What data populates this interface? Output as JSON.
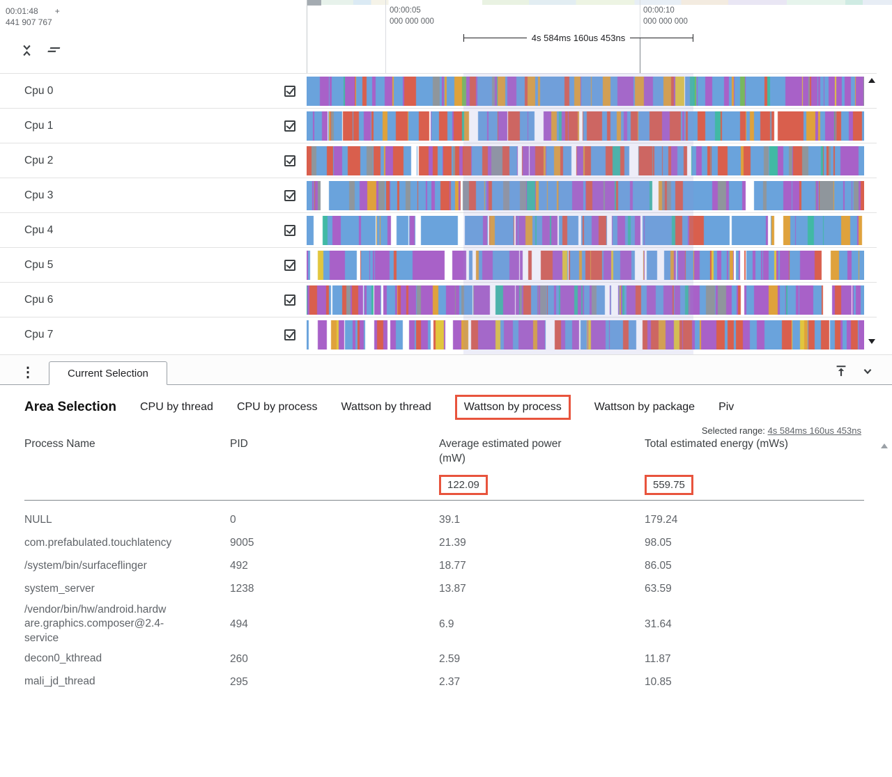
{
  "timeline": {
    "clock": {
      "time": "00:01:48",
      "plus": "+",
      "offset": "441 907 767"
    },
    "ticks": [
      {
        "time": "00:00:05",
        "sub": "000 000 000"
      },
      {
        "time": "00:00:10",
        "sub": "000 000 000"
      }
    ],
    "span_label": "4s 584ms 160us 453ns"
  },
  "tracks": {
    "palette": {
      "blue": "#6aa3dc",
      "purple": "#a861c8",
      "red": "#d95f4d",
      "orange": "#dfa23c",
      "teal": "#41b9a4",
      "gray": "#8f969c",
      "green": "#78b85e",
      "yellow": "#e2c63e",
      "white": "#ffffff"
    },
    "items": [
      {
        "name": "Cpu 0",
        "checked": true,
        "weights": {
          "blue": 50,
          "purple": 16,
          "orange": 10,
          "red": 8,
          "teal": 5,
          "gray": 4,
          "green": 3,
          "yellow": 2,
          "white": 2
        }
      },
      {
        "name": "Cpu 1",
        "checked": true,
        "weights": {
          "blue": 40,
          "red": 30,
          "purple": 14,
          "orange": 5,
          "teal": 3,
          "gray": 3,
          "white": 5
        }
      },
      {
        "name": "Cpu 2",
        "checked": true,
        "weights": {
          "blue": 42,
          "red": 28,
          "purple": 12,
          "orange": 6,
          "teal": 4,
          "gray": 5,
          "white": 3
        }
      },
      {
        "name": "Cpu 3",
        "checked": true,
        "weights": {
          "blue": 52,
          "purple": 14,
          "red": 10,
          "gray": 12,
          "orange": 4,
          "teal": 3,
          "white": 5
        }
      },
      {
        "name": "Cpu 4",
        "checked": true,
        "weights": {
          "blue": 60,
          "purple": 14,
          "red": 6,
          "orange": 5,
          "teal": 4,
          "white": 11
        }
      },
      {
        "name": "Cpu 5",
        "checked": true,
        "weights": {
          "blue": 36,
          "purple": 30,
          "red": 10,
          "orange": 6,
          "white": 13,
          "yellow": 5
        }
      },
      {
        "name": "Cpu 6",
        "checked": true,
        "weights": {
          "purple": 45,
          "blue": 27,
          "gray": 8,
          "red": 7,
          "teal": 5,
          "orange": 3,
          "white": 5
        }
      },
      {
        "name": "Cpu 7",
        "checked": true,
        "weights": {
          "purple": 36,
          "blue": 28,
          "red": 18,
          "orange": 6,
          "white": 8,
          "yellow": 4
        }
      }
    ]
  },
  "tabstrip": {
    "tab_label": "Current Selection"
  },
  "details": {
    "panel_title": "Area Selection",
    "highlight_color": "#e8543d",
    "tabs": [
      {
        "label": "CPU by thread",
        "selected": false
      },
      {
        "label": "CPU by process",
        "selected": false
      },
      {
        "label": "Wattson by thread",
        "selected": false
      },
      {
        "label": "Wattson by process",
        "selected": true
      },
      {
        "label": "Wattson by package",
        "selected": false
      },
      {
        "label": "Piv",
        "selected": false
      }
    ],
    "range": {
      "label": "Selected range:",
      "value": "4s 584ms 160us 453ns"
    },
    "table": {
      "columns": [
        "Process Name",
        "PID",
        "Average estimated power\n(mW)",
        "Total estimated energy (mWs)"
      ],
      "totals": {
        "avg_power": "122.09",
        "total_energy": "559.75"
      },
      "rows": [
        [
          "NULL",
          "0",
          "39.1",
          "179.24"
        ],
        [
          "com.prefabulated.touchlatency",
          "9005",
          "21.39",
          "98.05"
        ],
        [
          "/system/bin/surfaceflinger",
          "492",
          "18.77",
          "86.05"
        ],
        [
          "system_server",
          "1238",
          "13.87",
          "63.59"
        ],
        [
          "/vendor/bin/hw/android.hardw\nare.graphics.composer@2.4-\nservice",
          "494",
          "6.9",
          "31.64"
        ],
        [
          "decon0_kthread",
          "260",
          "2.59",
          "11.87"
        ],
        [
          "mali_jd_thread",
          "295",
          "2.37",
          "10.85"
        ]
      ]
    }
  }
}
